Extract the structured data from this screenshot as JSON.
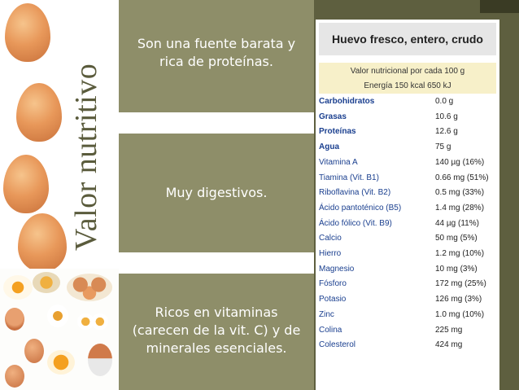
{
  "slide": {
    "title": "Valor nutritivo",
    "boxes": [
      {
        "lines": [
          "Son una fuente barata y",
          "rica de proteínas."
        ]
      },
      {
        "lines": [
          "Muy digestivos."
        ]
      },
      {
        "lines": [
          "Ricos en vitaminas",
          "(carecen de la vit. C) y de",
          "minerales esenciales."
        ]
      }
    ]
  },
  "nutrition_table": {
    "title": "Huevo fresco, entero, crudo",
    "subtitle": "Valor nutricional por cada 100 g",
    "energy": "Energía 150 kcal 650 kJ",
    "rows": [
      {
        "name": "Carbohidratos",
        "value": "0.0 g",
        "bold": true
      },
      {
        "name": "Grasas",
        "value": "10.6 g",
        "bold": true
      },
      {
        "name": "Proteínas",
        "value": "12.6 g",
        "bold": true
      },
      {
        "name": "Agua",
        "value": "75 g",
        "bold": true
      },
      {
        "name": "Vitamina A",
        "value": "140 µg (16%)",
        "bold": false
      },
      {
        "name": "Tiamina (Vit. B1)",
        "value": "0.66 mg (51%)",
        "bold": false
      },
      {
        "name": "Riboflavina (Vit. B2)",
        "value": "0.5 mg (33%)",
        "bold": false
      },
      {
        "name": "Ácido pantoténico (B5)",
        "value": "1.4 mg (28%)",
        "bold": false
      },
      {
        "name": "Ácido fólico (Vit. B9)",
        "value": "44 µg (11%)",
        "bold": false
      },
      {
        "name": "Calcio",
        "value": "50 mg (5%)",
        "bold": false
      },
      {
        "name": "Hierro",
        "value": "1.2 mg (10%)",
        "bold": false
      },
      {
        "name": "Magnesio",
        "value": "10 mg (3%)",
        "bold": false
      },
      {
        "name": "Fósforo",
        "value": "172 mg (25%)",
        "bold": false
      },
      {
        "name": "Potasio",
        "value": "126 mg (3%)",
        "bold": false
      },
      {
        "name": "Zinc",
        "value": "1.0 mg (10%)",
        "bold": false
      },
      {
        "name": "Colina",
        "value": "225 mg",
        "bold": false
      },
      {
        "name": "Colesterol",
        "value": "424 mg",
        "bold": false
      }
    ]
  }
}
